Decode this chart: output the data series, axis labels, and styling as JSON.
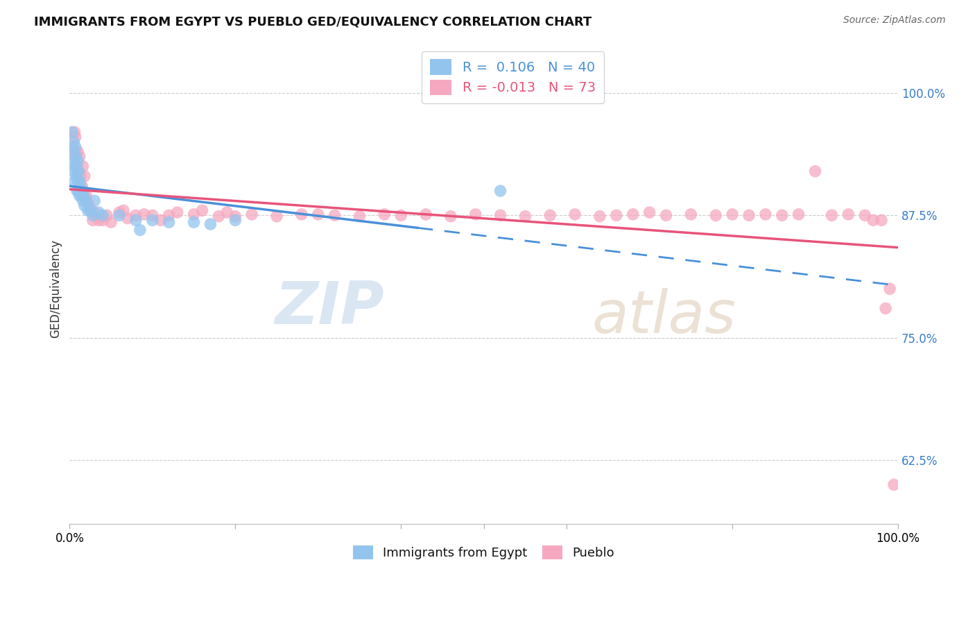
{
  "title": "IMMIGRANTS FROM EGYPT VS PUEBLO GED/EQUIVALENCY CORRELATION CHART",
  "source": "Source: ZipAtlas.com",
  "ylabel": "GED/Equivalency",
  "yticks": [
    0.625,
    0.75,
    0.875,
    1.0
  ],
  "ytick_labels": [
    "62.5%",
    "75.0%",
    "87.5%",
    "100.0%"
  ],
  "xlim": [
    0.0,
    1.0
  ],
  "ylim": [
    0.56,
    1.04
  ],
  "legend_blue_r": "R =  0.106",
  "legend_blue_n": "N = 40",
  "legend_pink_r": "R = -0.013",
  "legend_pink_n": "N = 73",
  "blue_color": "#93C4EE",
  "pink_color": "#F5A8C0",
  "blue_line_color": "#4A90D9",
  "pink_line_color": "#E8547A",
  "watermark_zip": "ZIP",
  "watermark_atlas": "atlas",
  "blue_scatter_x": [
    0.003,
    0.004,
    0.005,
    0.005,
    0.006,
    0.006,
    0.007,
    0.007,
    0.008,
    0.008,
    0.009,
    0.009,
    0.01,
    0.01,
    0.011,
    0.011,
    0.012,
    0.012,
    0.013,
    0.014,
    0.015,
    0.016,
    0.017,
    0.018,
    0.02,
    0.022,
    0.025,
    0.028,
    0.03,
    0.035,
    0.04,
    0.06,
    0.08,
    0.1,
    0.12,
    0.15,
    0.17,
    0.2,
    0.085,
    0.52
  ],
  "blue_scatter_y": [
    0.96,
    0.94,
    0.92,
    0.95,
    0.93,
    0.91,
    0.945,
    0.925,
    0.935,
    0.915,
    0.92,
    0.9,
    0.93,
    0.91,
    0.92,
    0.9,
    0.91,
    0.895,
    0.905,
    0.895,
    0.9,
    0.89,
    0.895,
    0.885,
    0.89,
    0.88,
    0.88,
    0.875,
    0.89,
    0.878,
    0.875,
    0.875,
    0.87,
    0.87,
    0.868,
    0.868,
    0.866,
    0.87,
    0.86,
    0.9
  ],
  "pink_scatter_x": [
    0.003,
    0.005,
    0.006,
    0.007,
    0.008,
    0.009,
    0.01,
    0.011,
    0.012,
    0.013,
    0.015,
    0.016,
    0.017,
    0.018,
    0.02,
    0.022,
    0.025,
    0.028,
    0.03,
    0.035,
    0.04,
    0.045,
    0.05,
    0.06,
    0.065,
    0.07,
    0.08,
    0.09,
    0.1,
    0.11,
    0.12,
    0.13,
    0.15,
    0.16,
    0.18,
    0.19,
    0.2,
    0.22,
    0.25,
    0.28,
    0.3,
    0.32,
    0.35,
    0.38,
    0.4,
    0.43,
    0.46,
    0.49,
    0.52,
    0.55,
    0.58,
    0.61,
    0.64,
    0.66,
    0.68,
    0.7,
    0.72,
    0.75,
    0.78,
    0.8,
    0.82,
    0.84,
    0.86,
    0.88,
    0.9,
    0.92,
    0.94,
    0.96,
    0.97,
    0.98,
    0.985,
    0.99,
    0.995
  ],
  "pink_scatter_y": [
    0.945,
    0.935,
    0.96,
    0.955,
    0.94,
    0.925,
    0.94,
    0.92,
    0.935,
    0.915,
    0.905,
    0.925,
    0.895,
    0.915,
    0.895,
    0.888,
    0.882,
    0.87,
    0.878,
    0.87,
    0.87,
    0.875,
    0.868,
    0.878,
    0.88,
    0.872,
    0.875,
    0.876,
    0.875,
    0.87,
    0.875,
    0.878,
    0.876,
    0.88,
    0.874,
    0.878,
    0.874,
    0.876,
    0.874,
    0.876,
    0.876,
    0.875,
    0.874,
    0.876,
    0.875,
    0.876,
    0.874,
    0.876,
    0.875,
    0.874,
    0.875,
    0.876,
    0.874,
    0.875,
    0.876,
    0.878,
    0.875,
    0.876,
    0.875,
    0.876,
    0.875,
    0.876,
    0.875,
    0.876,
    0.92,
    0.875,
    0.876,
    0.875,
    0.87,
    0.87,
    0.78,
    0.8,
    0.6
  ]
}
